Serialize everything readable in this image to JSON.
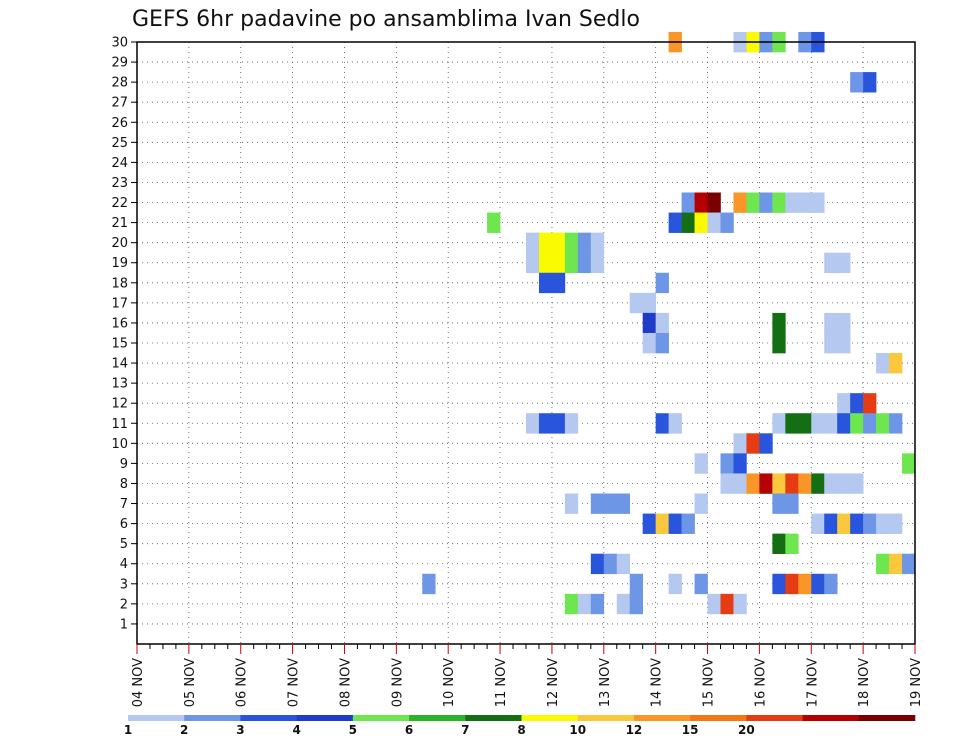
{
  "chart_data": {
    "type": "heatmap",
    "title": "GEFS 6hr padavine po ansamblima Ivan Sedlo",
    "y_ticks": [
      "1",
      "2",
      "3",
      "4",
      "5",
      "6",
      "7",
      "8",
      "9",
      "10",
      "11",
      "12",
      "13",
      "14",
      "15",
      "16",
      "17",
      "18",
      "19",
      "20",
      "21",
      "22",
      "23",
      "24",
      "25",
      "26",
      "27",
      "28",
      "29",
      "30"
    ],
    "x_ticks": [
      "04 NOV",
      "05 NOV",
      "06 NOV",
      "07 NOV",
      "08 NOV",
      "09 NOV",
      "10 NOV",
      "11 NOV",
      "12 NOV",
      "13 NOV",
      "14 NOV",
      "15 NOV",
      "16 NOV",
      "17 NOV",
      "18 NOV",
      "19 NOV"
    ],
    "ylim": [
      0.5,
      30.5
    ],
    "xlim": [
      0,
      60
    ],
    "grid": true,
    "colorbar": {
      "colors": [
        "#b4c8f0",
        "#6e96e6",
        "#2855dc",
        "#1e3cc8",
        "#6ee650",
        "#28b428",
        "#146e14",
        "#fafa00",
        "#fac83c",
        "#fa9628",
        "#f07814",
        "#e63c14",
        "#b40000",
        "#780000"
      ],
      "labels": [
        "1",
        "2",
        "3",
        "4",
        "5",
        "6",
        "7",
        "8",
        "10",
        "12",
        "15",
        "20"
      ]
    },
    "cells": [
      {
        "member": 30,
        "step": 42,
        "c": 10
      },
      {
        "member": 30,
        "step": 47,
        "c": 1
      },
      {
        "member": 30,
        "step": 48,
        "c": 8
      },
      {
        "member": 30,
        "step": 49,
        "c": 2
      },
      {
        "member": 30,
        "step": 50,
        "c": 5
      },
      {
        "member": 30,
        "step": 52,
        "c": 2
      },
      {
        "member": 30,
        "step": 53,
        "c": 3
      },
      {
        "member": 28,
        "step": 56,
        "c": 2
      },
      {
        "member": 28,
        "step": 57,
        "c": 3
      },
      {
        "member": 22,
        "step": 43,
        "c": 2
      },
      {
        "member": 22,
        "step": 44,
        "c": 13
      },
      {
        "member": 22,
        "step": 45,
        "c": 14
      },
      {
        "member": 22,
        "step": 47,
        "c": 10
      },
      {
        "member": 22,
        "step": 48,
        "c": 5
      },
      {
        "member": 22,
        "step": 49,
        "c": 2
      },
      {
        "member": 22,
        "step": 50,
        "c": 5
      },
      {
        "member": 22,
        "step": 51,
        "c": 1
      },
      {
        "member": 22,
        "step": 52,
        "c": 1
      },
      {
        "member": 22,
        "step": 53,
        "c": 1
      },
      {
        "member": 21,
        "step": 28,
        "c": 5
      },
      {
        "member": 21,
        "step": 42,
        "c": 3
      },
      {
        "member": 21,
        "step": 43,
        "c": 7
      },
      {
        "member": 21,
        "step": 44,
        "c": 8
      },
      {
        "member": 21,
        "step": 45,
        "c": 1
      },
      {
        "member": 21,
        "step": 46,
        "c": 2
      },
      {
        "member": 20,
        "step": 31,
        "c": 1
      },
      {
        "member": 20,
        "step": 32,
        "c": 8
      },
      {
        "member": 20,
        "step": 33,
        "c": 8
      },
      {
        "member": 20,
        "step": 34,
        "c": 5
      },
      {
        "member": 20,
        "step": 35,
        "c": 2
      },
      {
        "member": 20,
        "step": 36,
        "c": 1
      },
      {
        "member": 19,
        "step": 31,
        "c": 1
      },
      {
        "member": 19,
        "step": 32,
        "c": 8
      },
      {
        "member": 19,
        "step": 33,
        "c": 8
      },
      {
        "member": 19,
        "step": 34,
        "c": 5
      },
      {
        "member": 19,
        "step": 35,
        "c": 2
      },
      {
        "member": 19,
        "step": 36,
        "c": 1
      },
      {
        "member": 19,
        "step": 54,
        "c": 1
      },
      {
        "member": 19,
        "step": 55,
        "c": 1
      },
      {
        "member": 18,
        "step": 32,
        "c": 3
      },
      {
        "member": 18,
        "step": 33,
        "c": 3
      },
      {
        "member": 18,
        "step": 41,
        "c": 2
      },
      {
        "member": 17,
        "step": 39,
        "c": 1
      },
      {
        "member": 17,
        "step": 40,
        "c": 1
      },
      {
        "member": 16,
        "step": 40,
        "c": 4
      },
      {
        "member": 16,
        "step": 41,
        "c": 1
      },
      {
        "member": 16,
        "step": 50,
        "c": 7
      },
      {
        "member": 16,
        "step": 54,
        "c": 1
      },
      {
        "member": 16,
        "step": 55,
        "c": 1
      },
      {
        "member": 15,
        "step": 40,
        "c": 1
      },
      {
        "member": 15,
        "step": 41,
        "c": 2
      },
      {
        "member": 15,
        "step": 50,
        "c": 7
      },
      {
        "member": 15,
        "step": 54,
        "c": 1
      },
      {
        "member": 15,
        "step": 55,
        "c": 1
      },
      {
        "member": 14,
        "step": 58,
        "c": 1
      },
      {
        "member": 14,
        "step": 59,
        "c": 9
      },
      {
        "member": 12,
        "step": 55,
        "c": 1
      },
      {
        "member": 12,
        "step": 56,
        "c": 3
      },
      {
        "member": 12,
        "step": 57,
        "c": 12
      },
      {
        "member": 11,
        "step": 31,
        "c": 1
      },
      {
        "member": 11,
        "step": 32,
        "c": 3
      },
      {
        "member": 11,
        "step": 33,
        "c": 3
      },
      {
        "member": 11,
        "step": 34,
        "c": 1
      },
      {
        "member": 11,
        "step": 41,
        "c": 3
      },
      {
        "member": 11,
        "step": 42,
        "c": 1
      },
      {
        "member": 11,
        "step": 50,
        "c": 1
      },
      {
        "member": 11,
        "step": 51,
        "c": 7
      },
      {
        "member": 11,
        "step": 52,
        "c": 7
      },
      {
        "member": 11,
        "step": 53,
        "c": 1
      },
      {
        "member": 11,
        "step": 54,
        "c": 1
      },
      {
        "member": 11,
        "step": 55,
        "c": 3
      },
      {
        "member": 11,
        "step": 56,
        "c": 5
      },
      {
        "member": 11,
        "step": 57,
        "c": 2
      },
      {
        "member": 11,
        "step": 58,
        "c": 5
      },
      {
        "member": 11,
        "step": 59,
        "c": 2
      },
      {
        "member": 10,
        "step": 47,
        "c": 1
      },
      {
        "member": 10,
        "step": 48,
        "c": 12
      },
      {
        "member": 10,
        "step": 49,
        "c": 3
      },
      {
        "member": 9,
        "step": 44,
        "c": 1
      },
      {
        "member": 9,
        "step": 46,
        "c": 2
      },
      {
        "member": 9,
        "step": 47,
        "c": 3
      },
      {
        "member": 9,
        "step": 60,
        "c": 5
      },
      {
        "member": 8,
        "step": 46,
        "c": 1
      },
      {
        "member": 8,
        "step": 47,
        "c": 1
      },
      {
        "member": 8,
        "step": 48,
        "c": 10
      },
      {
        "member": 8,
        "step": 49,
        "c": 13
      },
      {
        "member": 8,
        "step": 50,
        "c": 9
      },
      {
        "member": 8,
        "step": 51,
        "c": 12
      },
      {
        "member": 8,
        "step": 52,
        "c": 10
      },
      {
        "member": 8,
        "step": 53,
        "c": 7
      },
      {
        "member": 8,
        "step": 54,
        "c": 1
      },
      {
        "member": 8,
        "step": 55,
        "c": 1
      },
      {
        "member": 8,
        "step": 56,
        "c": 1
      },
      {
        "member": 7,
        "step": 34,
        "c": 1
      },
      {
        "member": 7,
        "step": 36,
        "c": 2
      },
      {
        "member": 7,
        "step": 37,
        "c": 2
      },
      {
        "member": 7,
        "step": 38,
        "c": 2
      },
      {
        "member": 7,
        "step": 44,
        "c": 1
      },
      {
        "member": 7,
        "step": 50,
        "c": 2
      },
      {
        "member": 7,
        "step": 51,
        "c": 2
      },
      {
        "member": 6,
        "step": 40,
        "c": 3
      },
      {
        "member": 6,
        "step": 41,
        "c": 9
      },
      {
        "member": 6,
        "step": 42,
        "c": 3
      },
      {
        "member": 6,
        "step": 43,
        "c": 2
      },
      {
        "member": 6,
        "step": 53,
        "c": 1
      },
      {
        "member": 6,
        "step": 54,
        "c": 3
      },
      {
        "member": 6,
        "step": 55,
        "c": 9
      },
      {
        "member": 6,
        "step": 56,
        "c": 3
      },
      {
        "member": 6,
        "step": 57,
        "c": 2
      },
      {
        "member": 6,
        "step": 58,
        "c": 1
      },
      {
        "member": 6,
        "step": 59,
        "c": 1
      },
      {
        "member": 5,
        "step": 50,
        "c": 7
      },
      {
        "member": 5,
        "step": 51,
        "c": 5
      },
      {
        "member": 4,
        "step": 36,
        "c": 3
      },
      {
        "member": 4,
        "step": 37,
        "c": 2
      },
      {
        "member": 4,
        "step": 38,
        "c": 1
      },
      {
        "member": 4,
        "step": 58,
        "c": 5
      },
      {
        "member": 4,
        "step": 59,
        "c": 9
      },
      {
        "member": 4,
        "step": 60,
        "c": 2
      },
      {
        "member": 3,
        "step": 23,
        "c": 2
      },
      {
        "member": 3,
        "step": 39,
        "c": 2
      },
      {
        "member": 3,
        "step": 42,
        "c": 1
      },
      {
        "member": 3,
        "step": 44,
        "c": 2
      },
      {
        "member": 3,
        "step": 50,
        "c": 3
      },
      {
        "member": 3,
        "step": 51,
        "c": 12
      },
      {
        "member": 3,
        "step": 52,
        "c": 10
      },
      {
        "member": 3,
        "step": 53,
        "c": 3
      },
      {
        "member": 3,
        "step": 54,
        "c": 2
      },
      {
        "member": 2,
        "step": 34,
        "c": 5
      },
      {
        "member": 2,
        "step": 35,
        "c": 1
      },
      {
        "member": 2,
        "step": 36,
        "c": 2
      },
      {
        "member": 2,
        "step": 38,
        "c": 1
      },
      {
        "member": 2,
        "step": 39,
        "c": 2
      },
      {
        "member": 2,
        "step": 45,
        "c": 1
      },
      {
        "member": 2,
        "step": 46,
        "c": 12
      },
      {
        "member": 2,
        "step": 47,
        "c": 1
      }
    ]
  }
}
